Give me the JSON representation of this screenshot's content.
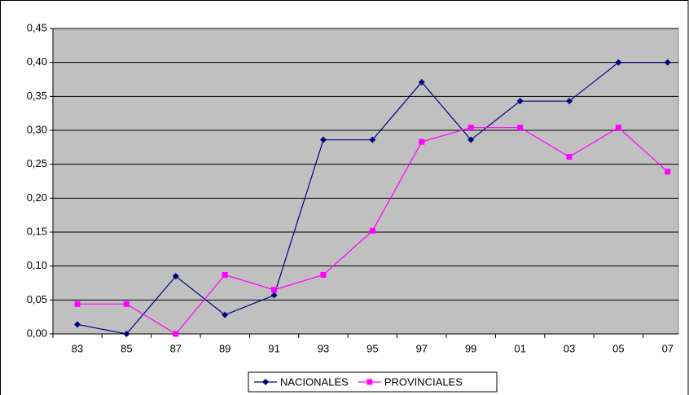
{
  "chart_data": {
    "type": "line",
    "categories": [
      "83",
      "85",
      "87",
      "89",
      "91",
      "93",
      "95",
      "97",
      "99",
      "01",
      "03",
      "05",
      "07"
    ],
    "series": [
      {
        "name": "NACIONALES",
        "color": "#000080",
        "marker": "diamond",
        "values": [
          0.014,
          0.0,
          0.085,
          0.028,
          0.057,
          0.286,
          0.286,
          0.371,
          0.286,
          0.343,
          0.343,
          0.4,
          0.4
        ]
      },
      {
        "name": "PROVINCIALES",
        "color": "#ff00ff",
        "marker": "square",
        "values": [
          0.044,
          0.044,
          0.0,
          0.087,
          0.065,
          0.087,
          0.152,
          0.283,
          0.304,
          0.304,
          0.261,
          0.304,
          0.239
        ]
      }
    ],
    "ylim": [
      0,
      0.45
    ],
    "yticks": [
      {
        "value": 0,
        "label": "0,00"
      },
      {
        "value": 0.05,
        "label": "0,05"
      },
      {
        "value": 0.1,
        "label": "0,10"
      },
      {
        "value": 0.15,
        "label": "0,15"
      },
      {
        "value": 0.2,
        "label": "0,20"
      },
      {
        "value": 0.25,
        "label": "0,25"
      },
      {
        "value": 0.3,
        "label": "0,30"
      },
      {
        "value": 0.35,
        "label": "0,35"
      },
      {
        "value": 0.4,
        "label": "0,40"
      },
      {
        "value": 0.45,
        "label": "0,45"
      }
    ],
    "grid": true,
    "legend": "bottom",
    "plot_background": "#c0c0c0"
  }
}
